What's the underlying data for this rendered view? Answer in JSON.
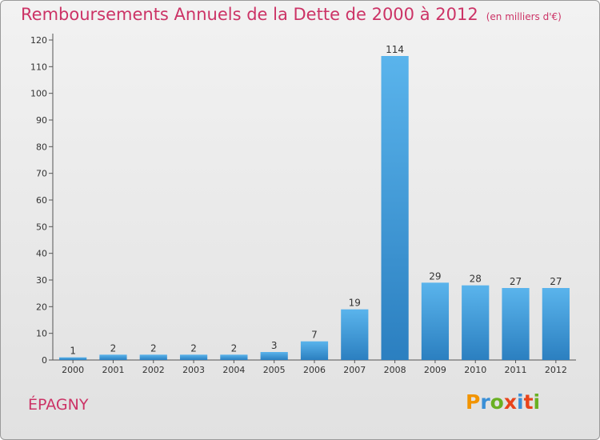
{
  "title": "Remboursements Annuels de la Dette de 2000 à 2012",
  "unit": "(en milliers d'€)",
  "place": "ÉPAGNY",
  "logo": {
    "letters": [
      "P",
      "r",
      "o",
      "x",
      "i",
      "t",
      "i"
    ],
    "colors": [
      "#f29400",
      "#3a8fd6",
      "#6ab023",
      "#e8441b",
      "#3a8fd6",
      "#e8441b",
      "#6ab023"
    ]
  },
  "colors": {
    "bar": "#3f9fe0",
    "bar_dark": "#2b7fc0",
    "title": "#cc3366"
  },
  "chart_data": {
    "type": "bar",
    "title": "Remboursements Annuels de la Dette de 2000 à 2012",
    "xlabel": "",
    "ylabel": "",
    "categories": [
      "2000",
      "2001",
      "2002",
      "2003",
      "2004",
      "2005",
      "2006",
      "2007",
      "2008",
      "2009",
      "2010",
      "2011",
      "2012"
    ],
    "values": [
      1,
      2,
      2,
      2,
      2,
      3,
      7,
      19,
      114,
      29,
      28,
      27,
      27
    ],
    "ylim": [
      0,
      120
    ],
    "yticks": [
      0,
      10,
      20,
      30,
      40,
      50,
      60,
      70,
      80,
      90,
      100,
      110,
      120
    ],
    "grid": false,
    "legend": "none"
  }
}
